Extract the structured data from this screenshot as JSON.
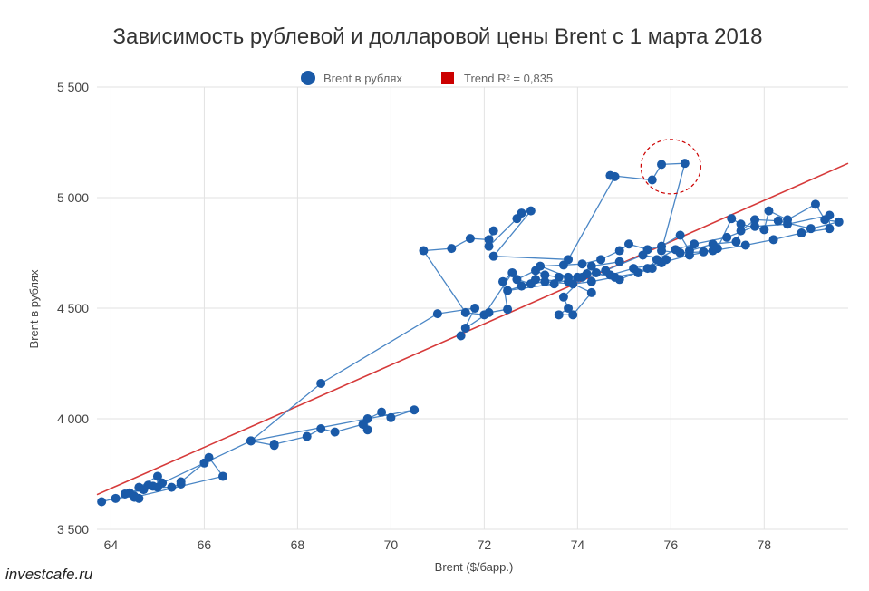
{
  "chart_data": {
    "type": "scatter",
    "title": "Зависимость рублевой и долларовой цены Brent с 1 марта 2018",
    "xlabel": "Brent ($/барр.)",
    "ylabel": "Brent в рублях",
    "xlim": [
      63.7,
      79.8
    ],
    "ylim": [
      3500,
      5500
    ],
    "x_ticks": [
      64,
      66,
      68,
      70,
      72,
      74,
      76,
      78
    ],
    "x_tick_labels": [
      "64",
      "66",
      "68",
      "70",
      "72",
      "74",
      "76",
      "78"
    ],
    "y_ticks": [
      3500,
      4000,
      4500,
      5000,
      5500
    ],
    "y_tick_labels": [
      "3 500",
      "4 000",
      "4 500",
      "5 000",
      "5 500"
    ],
    "grid": true,
    "legend_position": "top-center",
    "colors": {
      "points": "#1a5aa8",
      "line": "#4a86c5",
      "trend": "#d63a3a",
      "trend_legend": "#cc0000",
      "highlight": "#cc0000"
    },
    "series": [
      {
        "name": "Brent в рублях",
        "connected": true,
        "points": [
          [
            63.8,
            3625
          ],
          [
            64.1,
            3640
          ],
          [
            64.5,
            3650
          ],
          [
            64.6,
            3640
          ],
          [
            64.4,
            3665
          ],
          [
            64.8,
            3700
          ],
          [
            65.0,
            3690
          ],
          [
            65.0,
            3740
          ],
          [
            64.6,
            3690
          ],
          [
            65.3,
            3690
          ],
          [
            65.5,
            3705
          ],
          [
            65.5,
            3715
          ],
          [
            66.0,
            3800
          ],
          [
            66.1,
            3825
          ],
          [
            66.4,
            3740
          ],
          [
            64.5,
            3645
          ],
          [
            64.3,
            3660
          ],
          [
            64.7,
            3680
          ],
          [
            64.9,
            3695
          ],
          [
            65.1,
            3710
          ],
          [
            67.0,
            3900
          ],
          [
            67.5,
            3880
          ],
          [
            67.5,
            3885
          ],
          [
            68.2,
            3920
          ],
          [
            68.5,
            3955
          ],
          [
            68.8,
            3940
          ],
          [
            69.4,
            3975
          ],
          [
            69.5,
            3950
          ],
          [
            69.5,
            4000
          ],
          [
            69.8,
            4030
          ],
          [
            70.0,
            4005
          ],
          [
            70.5,
            4040
          ],
          [
            67.0,
            3900
          ],
          [
            68.5,
            4160
          ],
          [
            71.0,
            4475
          ],
          [
            71.8,
            4500
          ],
          [
            71.5,
            4375
          ],
          [
            71.6,
            4410
          ],
          [
            72.1,
            4480
          ],
          [
            72.5,
            4495
          ],
          [
            72.4,
            4620
          ],
          [
            72.6,
            4660
          ],
          [
            72.0,
            4470
          ],
          [
            71.6,
            4480
          ],
          [
            70.7,
            4760
          ],
          [
            71.3,
            4770
          ],
          [
            71.7,
            4815
          ],
          [
            72.1,
            4810
          ],
          [
            72.2,
            4850
          ],
          [
            72.1,
            4780
          ],
          [
            72.7,
            4905
          ],
          [
            72.8,
            4930
          ],
          [
            73.0,
            4940
          ],
          [
            72.2,
            4735
          ],
          [
            73.8,
            4720
          ],
          [
            74.8,
            5095
          ],
          [
            74.7,
            5100
          ],
          [
            75.6,
            5080
          ],
          [
            75.8,
            5150
          ],
          [
            76.3,
            5155
          ],
          [
            75.8,
            4760
          ],
          [
            76.2,
            4750
          ],
          [
            76.7,
            4755
          ],
          [
            77.0,
            4770
          ],
          [
            77.3,
            4905
          ],
          [
            77.5,
            4880
          ],
          [
            78.0,
            4855
          ],
          [
            78.1,
            4940
          ],
          [
            78.5,
            4900
          ],
          [
            79.1,
            4970
          ],
          [
            79.3,
            4900
          ],
          [
            79.6,
            4890
          ],
          [
            79.0,
            4860
          ],
          [
            78.3,
            4895
          ],
          [
            77.8,
            4900
          ],
          [
            77.5,
            4850
          ],
          [
            77.4,
            4800
          ],
          [
            76.9,
            4790
          ],
          [
            76.4,
            4760
          ],
          [
            76.2,
            4830
          ],
          [
            75.8,
            4780
          ],
          [
            75.5,
            4765
          ],
          [
            75.1,
            4790
          ],
          [
            74.9,
            4760
          ],
          [
            74.5,
            4720
          ],
          [
            74.1,
            4700
          ],
          [
            73.7,
            4695
          ],
          [
            73.2,
            4690
          ],
          [
            73.8,
            4640
          ],
          [
            74.4,
            4660
          ],
          [
            74.9,
            4630
          ],
          [
            75.5,
            4680
          ],
          [
            75.7,
            4720
          ],
          [
            76.1,
            4765
          ],
          [
            76.5,
            4790
          ],
          [
            77.2,
            4820
          ],
          [
            77.8,
            4870
          ],
          [
            78.5,
            4880
          ],
          [
            79.4,
            4920
          ],
          [
            79.4,
            4860
          ],
          [
            78.8,
            4840
          ],
          [
            78.2,
            4810
          ],
          [
            77.6,
            4785
          ],
          [
            76.9,
            4760
          ],
          [
            76.4,
            4740
          ],
          [
            75.8,
            4705
          ],
          [
            75.2,
            4680
          ],
          [
            74.7,
            4650
          ],
          [
            74.1,
            4640
          ],
          [
            73.6,
            4640
          ],
          [
            73.3,
            4650
          ],
          [
            73.1,
            4670
          ],
          [
            72.7,
            4630
          ],
          [
            73.0,
            4610
          ],
          [
            73.3,
            4620
          ],
          [
            73.9,
            4610
          ],
          [
            74.3,
            4620
          ],
          [
            74.8,
            4640
          ],
          [
            75.3,
            4660
          ],
          [
            75.6,
            4680
          ],
          [
            75.9,
            4720
          ],
          [
            75.4,
            4740
          ],
          [
            74.6,
            4670
          ],
          [
            74.2,
            4655
          ],
          [
            73.7,
            4550
          ],
          [
            73.8,
            4500
          ],
          [
            73.6,
            4470
          ],
          [
            73.9,
            4470
          ],
          [
            74.3,
            4570
          ],
          [
            73.8,
            4620
          ],
          [
            73.1,
            4630
          ],
          [
            72.8,
            4600
          ],
          [
            72.5,
            4580
          ],
          [
            73.5,
            4610
          ],
          [
            74.0,
            4640
          ],
          [
            74.3,
            4690
          ],
          [
            74.9,
            4710
          ]
        ]
      },
      {
        "name": "Trend R² = 0,835",
        "type": "line",
        "points": [
          [
            63.7,
            3657
          ],
          [
            79.8,
            5155
          ]
        ]
      }
    ],
    "annotations": [
      {
        "type": "dashed-circle",
        "x": 76.0,
        "y": 5140
      }
    ]
  },
  "watermark": "investcafe.ru"
}
